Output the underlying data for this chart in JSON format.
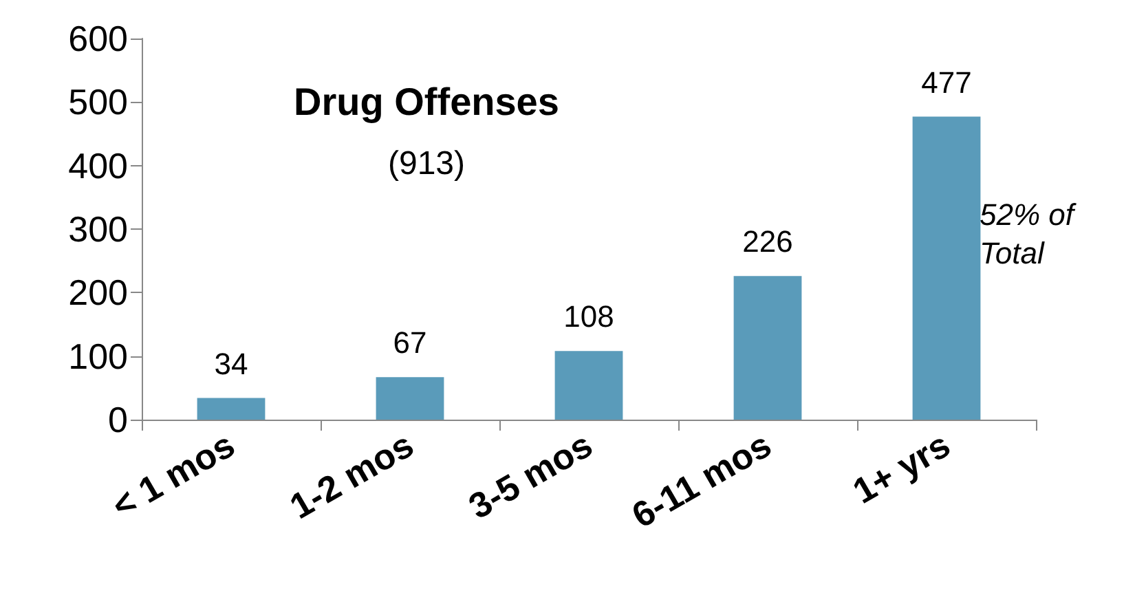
{
  "chart_data": {
    "type": "bar",
    "title": "Drug Offenses",
    "subtitle": "(913)",
    "categories": [
      "< 1 mos",
      "1-2 mos",
      "3-5 mos",
      "6-11 mos",
      "1+ yrs"
    ],
    "values": [
      34,
      67,
      108,
      226,
      477
    ],
    "color": "#5a9bba",
    "ylim": [
      0,
      600
    ],
    "yticks": [
      0,
      100,
      200,
      300,
      400,
      500,
      600
    ],
    "grid": false,
    "data_labels": true,
    "annotations": [
      "52% of\nTotal"
    ]
  }
}
